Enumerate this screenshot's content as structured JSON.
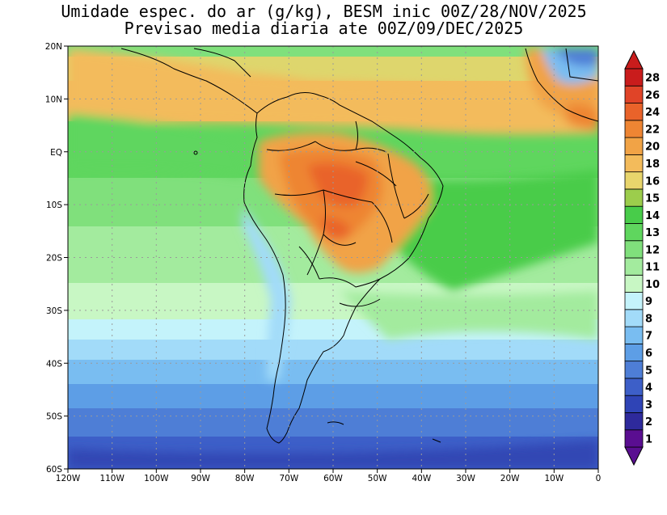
{
  "title_line1": "Umidade espec. do ar (g/kg), BESM inic 00Z/28/NOV/2025",
  "title_line2": "Previsao media diaria ate 00Z/09/DEC/2025",
  "map": {
    "lon_range": [
      -120,
      0
    ],
    "lat_range": [
      -60,
      20
    ],
    "lon_ticks": [
      "120W",
      "110W",
      "100W",
      "90W",
      "80W",
      "70W",
      "60W",
      "50W",
      "40W",
      "30W",
      "20W",
      "10W",
      "0"
    ],
    "lat_ticks": [
      "20N",
      "10N",
      "EQ",
      "10S",
      "20S",
      "30S",
      "40S",
      "50S",
      "60S"
    ],
    "gridlines": "dotted",
    "region": "South America"
  },
  "colorbar": {
    "orientation": "vertical",
    "placement": "right",
    "labels": [
      "1",
      "2",
      "3",
      "4",
      "5",
      "6",
      "7",
      "8",
      "9",
      "10",
      "11",
      "12",
      "13",
      "14",
      "15",
      "16",
      "18",
      "20",
      "22",
      "24",
      "26",
      "28"
    ],
    "colors": [
      "#5a0e91",
      "#2e2a9c",
      "#2f44b6",
      "#3d5fc8",
      "#4e7ed6",
      "#5d9ee6",
      "#79bdf1",
      "#a2dbf9",
      "#c4f3fb",
      "#c8f7c4",
      "#a3eb9e",
      "#80e07c",
      "#5fd65e",
      "#48cc4a",
      "#9ccd4c",
      "#e8d56c",
      "#f3bb5b",
      "#f1a346",
      "#ee8533",
      "#e9632a",
      "#e04428",
      "#c91c1c"
    ]
  }
}
